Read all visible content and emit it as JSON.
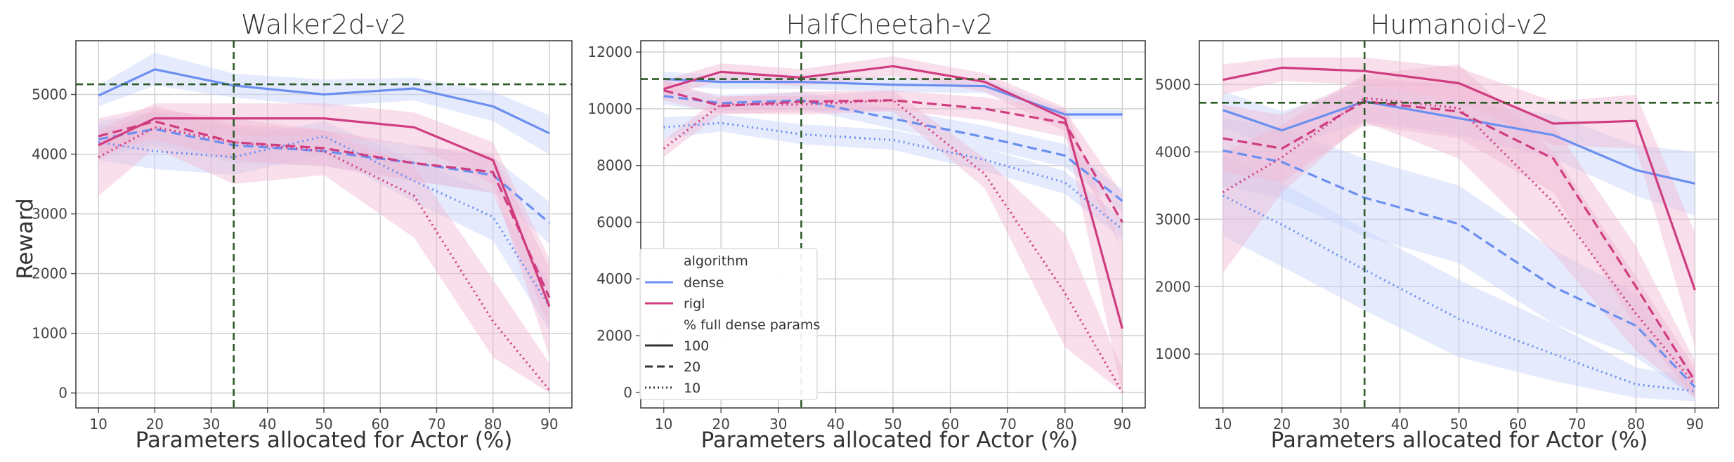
{
  "legend": {
    "algorithm_title": "algorithm",
    "dense_label": "dense",
    "rigl_label": "rigl",
    "params_title": "% full dense params",
    "params_levels": [
      "100",
      "20",
      "10"
    ]
  },
  "colors": {
    "dense": "#6b8ff0",
    "rigl": "#d03c80",
    "dense_band": "#c6d3fb",
    "rigl_band": "#f0b7d2",
    "reference": "#2d5a27",
    "grid": "#d0d0d0"
  },
  "chart_data": [
    {
      "type": "line",
      "title": "Walker2d-v2",
      "xlabel": "Parameters allocated for Actor (%)",
      "ylabel": "Reward",
      "xlim": [
        6,
        94
      ],
      "ylim": [
        -250,
        5900
      ],
      "xticks": [
        10,
        20,
        30,
        40,
        50,
        60,
        70,
        80,
        90
      ],
      "yticks": [
        0,
        1000,
        2000,
        3000,
        4000,
        5000
      ],
      "ref_x": 34,
      "ref_y": 5170,
      "x": [
        10,
        20,
        34,
        50,
        66,
        80,
        90
      ],
      "series": [
        {
          "algorithm": "dense",
          "params": "100",
          "values": [
            4980,
            5420,
            5150,
            5000,
            5100,
            4800,
            4350
          ],
          "lower": [
            4800,
            5150,
            4950,
            4800,
            4900,
            4550,
            4000
          ],
          "upper": [
            5150,
            5700,
            5350,
            5250,
            5280,
            5050,
            4650
          ]
        },
        {
          "algorithm": "dense",
          "params": "20",
          "values": [
            4250,
            4420,
            4150,
            4050,
            3850,
            3650,
            2850
          ],
          "lower": [
            3950,
            4150,
            3850,
            3800,
            3550,
            3350,
            2500
          ],
          "upper": [
            4550,
            4700,
            4450,
            4300,
            4150,
            3950,
            3200
          ]
        },
        {
          "algorithm": "dense",
          "params": "10",
          "values": [
            4200,
            4050,
            3950,
            4300,
            3550,
            2950,
            1450
          ],
          "lower": [
            3900,
            3750,
            3650,
            4000,
            3200,
            2550,
            1050
          ],
          "upper": [
            4500,
            4350,
            4250,
            4550,
            3900,
            3350,
            1850
          ]
        },
        {
          "algorithm": "rigl",
          "params": "100",
          "values": [
            4150,
            4600,
            4600,
            4600,
            4450,
            3900,
            1450
          ],
          "lower": [
            3900,
            4400,
            4300,
            4300,
            4150,
            3500,
            600
          ],
          "upper": [
            4400,
            4850,
            4850,
            4850,
            4700,
            4200,
            2250
          ]
        },
        {
          "algorithm": "rigl",
          "params": "20",
          "values": [
            4300,
            4550,
            4200,
            4100,
            3850,
            3700,
            1600
          ],
          "lower": [
            4000,
            4250,
            3900,
            3800,
            3550,
            3350,
            1100
          ],
          "upper": [
            4600,
            4800,
            4500,
            4400,
            4150,
            4000,
            2100
          ]
        },
        {
          "algorithm": "rigl",
          "params": "10",
          "values": [
            3950,
            4450,
            4200,
            4050,
            3300,
            1200,
            50
          ],
          "lower": [
            3300,
            4100,
            3500,
            3650,
            2600,
            600,
            0
          ],
          "upper": [
            4300,
            4750,
            4600,
            4400,
            3800,
            1900,
            500
          ]
        }
      ]
    },
    {
      "type": "line",
      "title": "HalfCheetah-v2",
      "xlabel": "Parameters allocated for Actor (%)",
      "ylabel": "",
      "xlim": [
        6,
        94
      ],
      "ylim": [
        -550,
        12400
      ],
      "xticks": [
        10,
        20,
        30,
        40,
        50,
        60,
        70,
        80,
        90
      ],
      "yticks": [
        0,
        2000,
        4000,
        6000,
        8000,
        10000,
        12000
      ],
      "ref_x": 34,
      "ref_y": 11050,
      "x": [
        10,
        20,
        34,
        50,
        66,
        80,
        90
      ],
      "series": [
        {
          "algorithm": "dense",
          "params": "100",
          "values": [
            11050,
            10950,
            10950,
            10850,
            10800,
            9800,
            9800
          ],
          "lower": [
            10800,
            10700,
            10700,
            10600,
            10550,
            9650,
            9650
          ],
          "upper": [
            11300,
            11200,
            11200,
            11100,
            11050,
            9950,
            9950
          ]
        },
        {
          "algorithm": "dense",
          "params": "20",
          "values": [
            10450,
            10200,
            10300,
            9650,
            9000,
            8350,
            6750
          ],
          "lower": [
            10150,
            9900,
            10000,
            9300,
            8600,
            7950,
            6350
          ],
          "upper": [
            10750,
            10500,
            10600,
            10000,
            9400,
            8750,
            7150
          ]
        },
        {
          "algorithm": "dense",
          "params": "10",
          "values": [
            9350,
            9500,
            9100,
            8900,
            8200,
            7400,
            5750
          ],
          "lower": [
            8950,
            9200,
            8750,
            8550,
            7800,
            7000,
            5400
          ],
          "upper": [
            9700,
            9800,
            9450,
            9250,
            8600,
            7800,
            6100
          ]
        },
        {
          "algorithm": "rigl",
          "params": "100",
          "values": [
            10700,
            11300,
            11100,
            11500,
            10950,
            9650,
            2250
          ],
          "lower": [
            10400,
            11000,
            10800,
            11150,
            10600,
            9200,
            0
          ],
          "upper": [
            11000,
            11600,
            11400,
            11850,
            11250,
            10050,
            5000
          ]
        },
        {
          "algorithm": "rigl",
          "params": "20",
          "values": [
            10650,
            10100,
            10250,
            10300,
            10000,
            9500,
            6000
          ],
          "lower": [
            10300,
            9800,
            9900,
            9950,
            9600,
            9000,
            5000
          ],
          "upper": [
            11000,
            10400,
            10600,
            10650,
            10400,
            9950,
            7000
          ]
        },
        {
          "algorithm": "rigl",
          "params": "10",
          "values": [
            8600,
            10150,
            10150,
            10300,
            7700,
            3500,
            0
          ],
          "lower": [
            8300,
            9850,
            9800,
            9900,
            7200,
            1600,
            0
          ],
          "upper": [
            8900,
            10450,
            10450,
            10650,
            8250,
            5600,
            800
          ]
        }
      ]
    },
    {
      "type": "line",
      "title": "Humanoid-v2",
      "xlabel": "Parameters allocated for Actor (%)",
      "ylabel": "",
      "xlim": [
        6,
        94
      ],
      "ylim": [
        200,
        5650
      ],
      "xticks": [
        10,
        20,
        30,
        40,
        50,
        60,
        70,
        80,
        90
      ],
      "yticks": [
        1000,
        2000,
        3000,
        4000,
        5000
      ],
      "ref_x": 34,
      "ref_y": 4730,
      "x": [
        10,
        20,
        34,
        50,
        66,
        80,
        90
      ],
      "series": [
        {
          "algorithm": "dense",
          "params": "100",
          "values": [
            4620,
            4320,
            4750,
            4500,
            4250,
            3730,
            3530
          ],
          "lower": [
            4350,
            4050,
            4450,
            4250,
            3900,
            3350,
            3050
          ],
          "upper": [
            4900,
            4600,
            5000,
            4750,
            4550,
            4100,
            4000
          ]
        },
        {
          "algorithm": "dense",
          "params": "20",
          "values": [
            4020,
            3850,
            3320,
            2930,
            2000,
            1420,
            510
          ],
          "lower": [
            3500,
            3300,
            2750,
            2350,
            1450,
            950,
            350
          ],
          "upper": [
            4500,
            4350,
            3900,
            3500,
            2550,
            1900,
            700
          ]
        },
        {
          "algorithm": "dense",
          "params": "10",
          "values": [
            3350,
            2920,
            2250,
            1520,
            1000,
            550,
            450
          ],
          "lower": [
            2750,
            2300,
            1650,
            950,
            600,
            350,
            300
          ],
          "upper": [
            3950,
            3550,
            2850,
            2100,
            1450,
            800,
            650
          ]
        },
        {
          "algorithm": "rigl",
          "params": "100",
          "values": [
            5070,
            5250,
            5200,
            5020,
            4420,
            4460,
            1950
          ],
          "lower": [
            4850,
            5050,
            5000,
            4750,
            4100,
            4050,
            1100
          ],
          "upper": [
            5300,
            5400,
            5400,
            5250,
            4750,
            4850,
            2800
          ]
        },
        {
          "algorithm": "rigl",
          "params": "20",
          "values": [
            4200,
            4050,
            4750,
            4600,
            3900,
            2000,
            600
          ],
          "lower": [
            3700,
            3550,
            4400,
            4200,
            3400,
            1400,
            350
          ],
          "upper": [
            4700,
            4550,
            5100,
            5000,
            4400,
            2600,
            900
          ]
        },
        {
          "algorithm": "rigl",
          "params": "10",
          "values": [
            3400,
            3920,
            4800,
            4650,
            3250,
            1600,
            550
          ],
          "lower": [
            2200,
            3400,
            4450,
            3900,
            2500,
            1050,
            350
          ],
          "upper": [
            4000,
            4400,
            5150,
            5300,
            4000,
            2150,
            800
          ]
        }
      ]
    }
  ]
}
